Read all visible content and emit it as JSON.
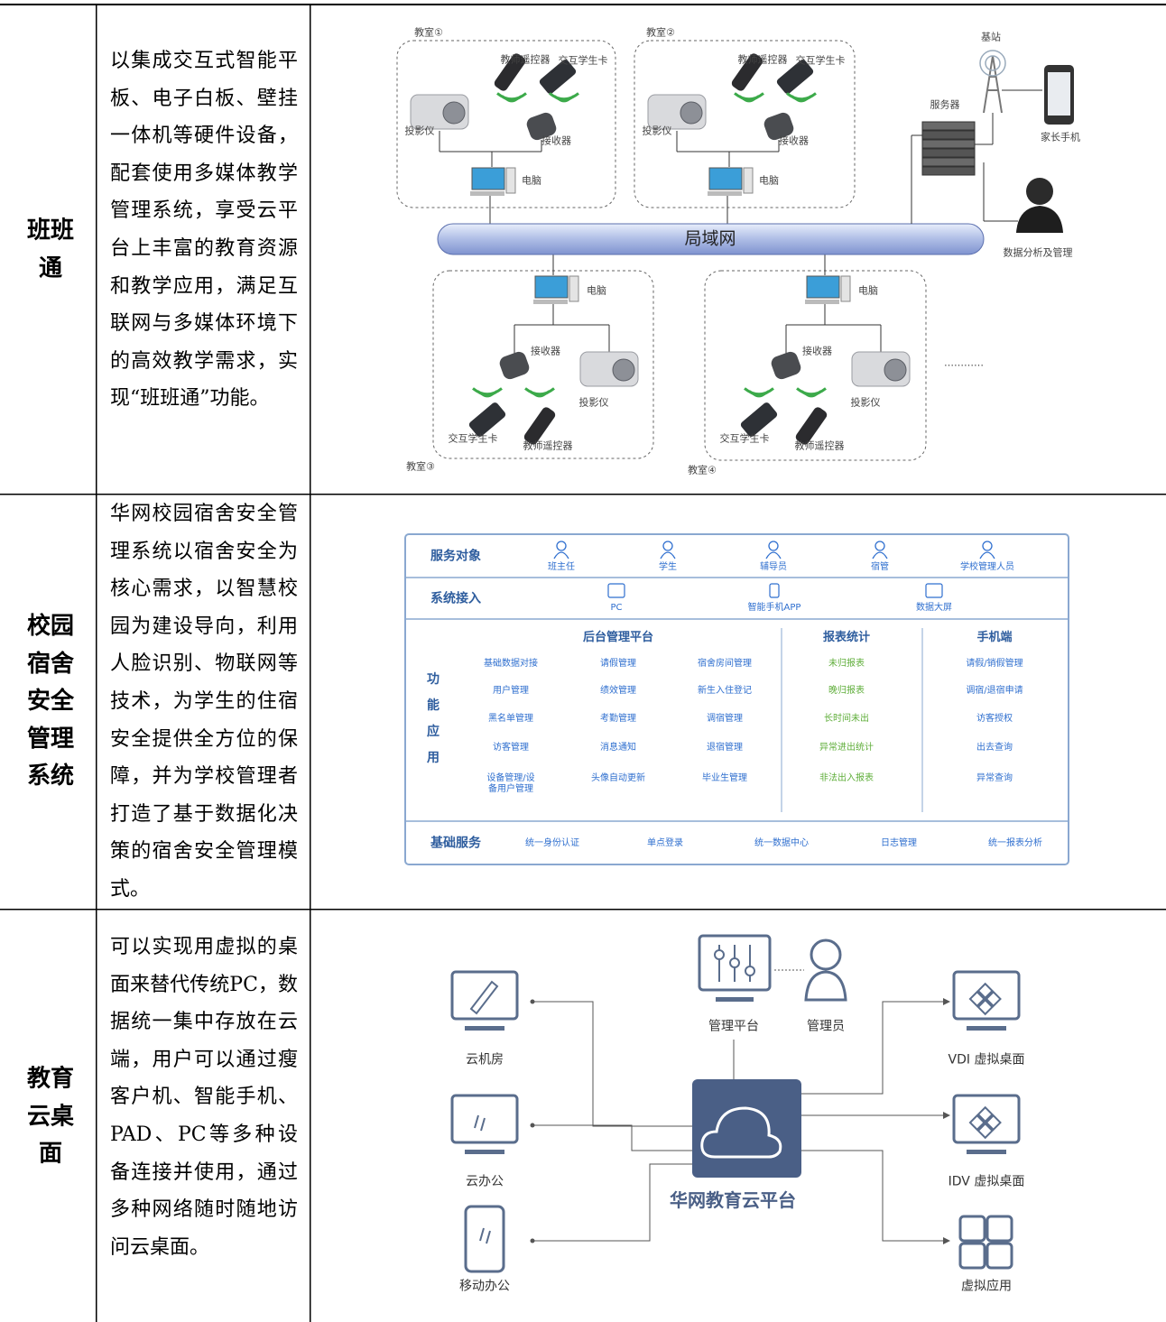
{
  "table": {
    "rows": [
      {
        "label": "班班通",
        "description": "以集成交互式智能平板、电子白板、壁挂一体机等硬件设备，配套使用多媒体教学管理系统，享受云平台上丰富的教育资源和教学应用，满足互联网与多媒体环境下的高效教学需求，实现“班班通”功能。",
        "diagram": {
          "classrooms": [
            {
              "name": "教室①",
              "teacher_remote": "教师遥控器",
              "student_card": "交互学生卡",
              "projector": "投影仪",
              "receiver": "接收器",
              "computer": "电脑"
            },
            {
              "name": "教室②",
              "teacher_remote": "教师遥控器",
              "student_card": "交互学生卡",
              "projector": "投影仪",
              "receiver": "接收器",
              "computer": "电脑"
            },
            {
              "name": "教室③",
              "teacher_remote": "教师遥控器",
              "student_card": "交互学生卡",
              "projector": "投影仪",
              "receiver": "接收器",
              "computer": "电脑"
            },
            {
              "name": "教室④",
              "teacher_remote": "教师遥控器",
              "student_card": "交互学生卡",
              "projector": "投影仪",
              "receiver": "接收器",
              "computer": "电脑"
            }
          ],
          "network": "局域网",
          "base_station": "基站",
          "server": "服务器",
          "parent_phone": "家长手机",
          "data_analysis": "数据分析及管理",
          "more": "…………"
        }
      },
      {
        "label": "校园宿舍安全管理系统",
        "description": "华网校园宿舍安全管理系统以宿舍安全为核心需求，以智慧校园为建设导向，利用人脸识别、物联网等技术，为学生的住宿安全提供全方位的保障，并为学校管理者打造了基于数据化决策的宿舍安全管理模式。",
        "diagram": {
          "service_targets": {
            "title": "服务对象",
            "items": [
              "班主任",
              "学生",
              "辅导员",
              "宿管",
              "学校管理人员"
            ]
          },
          "system_access": {
            "title": "系统接入",
            "items": [
              "PC",
              "智能手机APP",
              "数据大屏"
            ]
          },
          "functions": {
            "title": "功能应用",
            "groups": [
              {
                "title": "后台管理平台",
                "columns": [
                  [
                    "基础数据对接",
                    "用户管理",
                    "黑名单管理",
                    "访客管理",
                    "设备管理/设备用户管理"
                  ],
                  [
                    "请假管理",
                    "绩效管理",
                    "考勤管理",
                    "消息通知",
                    "头像自动更新"
                  ],
                  [
                    "宿舍房间管理",
                    "新生入住登记",
                    "调宿管理",
                    "退宿管理",
                    "毕业生管理"
                  ]
                ]
              },
              {
                "title": "报表统计",
                "columns": [
                  [
                    "未归报表",
                    "晚归报表",
                    "长时间未出",
                    "异常进出统计",
                    "非法出入报表"
                  ]
                ]
              },
              {
                "title": "手机端",
                "columns": [
                  [
                    "请假/销假管理",
                    "调宿/退宿申请",
                    "访客授权",
                    "出去查询",
                    "异常查询"
                  ]
                ]
              }
            ]
          },
          "basic_services": {
            "title": "基础服务",
            "items": [
              "统一身份认证",
              "单点登录",
              "统一数据中心",
              "日志管理",
              "统一报表分析"
            ]
          }
        }
      },
      {
        "label": "教育云桌面",
        "description": "可以实现用虚拟的桌面来替代传统PC，数据统一集中存放在云端，用户可以通过瘦客户机、智能手机、PAD、PC等多种设备连接并使用，通过多种网络随时随地访问云桌面。",
        "diagram": {
          "center": "华网教育云平台",
          "management_platform": "管理平台",
          "administrator": "管理员",
          "left": [
            "云机房",
            "云办公",
            "移动办公"
          ],
          "right": [
            "VDI 虚拟桌面",
            "IDV 虚拟桌面",
            "虚拟应用"
          ]
        }
      }
    ]
  }
}
